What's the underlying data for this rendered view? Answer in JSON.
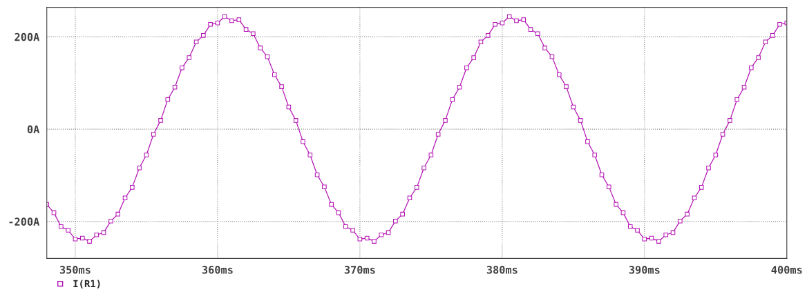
{
  "chart_data": {
    "type": "line",
    "x": [
      348,
      348.5,
      349,
      349.5,
      350,
      350.5,
      351,
      351.5,
      352,
      352.5,
      353,
      353.5,
      354,
      354.5,
      355,
      355.5,
      356,
      356.5,
      357,
      357.5,
      358,
      358.5,
      359,
      359.5,
      360,
      360.5,
      361,
      361.5,
      362,
      362.5,
      363,
      363.5,
      364,
      364.5,
      365,
      365.5,
      366,
      366.5,
      367,
      367.5,
      368,
      368.5,
      369,
      369.5,
      370,
      370.5,
      371,
      371.5,
      372,
      372.5,
      373,
      373.5,
      374,
      374.5,
      375,
      375.5,
      376,
      376.5,
      377,
      377.5,
      378,
      378.5,
      379,
      379.5,
      380,
      380.5,
      381,
      381.5,
      382,
      382.5,
      383,
      383.5,
      384,
      384.5,
      385,
      385.5,
      386,
      386.5,
      387,
      387.5,
      388,
      388.5,
      389,
      389.5,
      390,
      390.5,
      391,
      391.5,
      392,
      392.5,
      393,
      393.5,
      394,
      394.5,
      395,
      395.5,
      396,
      396.5,
      397,
      397.5,
      398,
      398.5,
      399,
      399.5,
      400
    ],
    "series": [
      {
        "name": "I(R1)",
        "color": "#b414b4",
        "values": [
          -163,
          -181,
          -211,
          -219,
          -238,
          -236,
          -243,
          -229,
          -224,
          -199,
          -184,
          -149,
          -126,
          -84,
          -56,
          -11,
          19,
          64,
          91,
          133,
          155,
          189,
          203,
          227,
          230,
          244,
          235,
          237,
          216,
          207,
          176,
          157,
          118,
          92,
          48,
          19,
          -27,
          -56,
          -99,
          -125,
          -163,
          -181,
          -211,
          -219,
          -238,
          -236,
          -243,
          -229,
          -224,
          -199,
          -184,
          -149,
          -126,
          -84,
          -56,
          -11,
          19,
          64,
          91,
          133,
          155,
          189,
          203,
          227,
          230,
          244,
          235,
          237,
          216,
          207,
          176,
          157,
          118,
          92,
          48,
          19,
          -27,
          -56,
          -99,
          -125,
          -163,
          -181,
          -211,
          -219,
          -238,
          -236,
          -243,
          -229,
          -224,
          -199,
          -184,
          -149,
          -126,
          -84,
          -56,
          -11,
          19,
          64,
          91,
          133,
          155,
          189,
          203,
          227,
          230
        ]
      }
    ],
    "xlim": [
      348,
      400
    ],
    "ylim": [
      -280,
      264
    ],
    "xticks": [
      {
        "value": 350,
        "label": "350ms"
      },
      {
        "value": 360,
        "label": "360ms"
      },
      {
        "value": 370,
        "label": "370ms"
      },
      {
        "value": 380,
        "label": "380ms"
      },
      {
        "value": 390,
        "label": "390ms"
      },
      {
        "value": 400,
        "label": "400ms"
      }
    ],
    "yticks": [
      {
        "value": -200,
        "label": "-200A"
      },
      {
        "value": 0,
        "label": "0A"
      },
      {
        "value": 200,
        "label": "200A"
      }
    ],
    "grid": true,
    "legend": "bottom left",
    "marker": "square",
    "line_style": "solid"
  }
}
